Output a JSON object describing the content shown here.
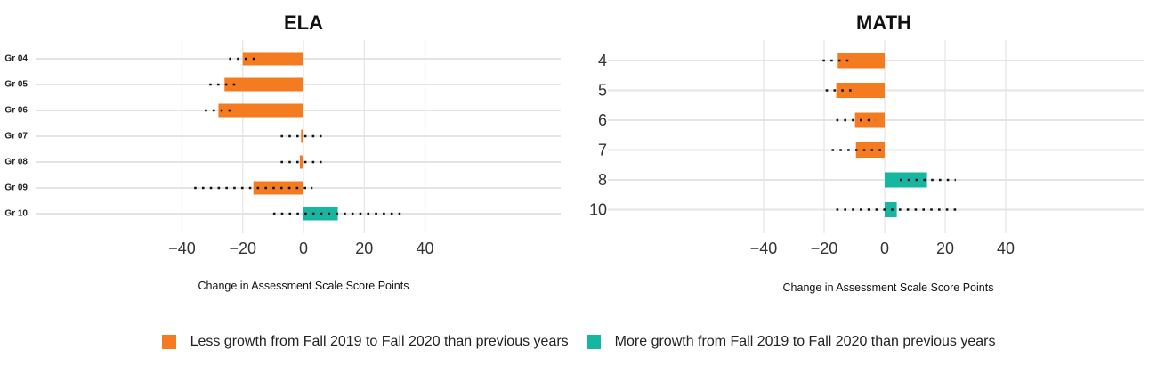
{
  "colors": {
    "less": "#f47b20",
    "more": "#17b6a1",
    "grid": "#e4e4e4",
    "text": "#222222"
  },
  "chart_data": [
    {
      "type": "bar",
      "title": "ELA",
      "orientation": "horizontal",
      "xlabel": "Change in Assessment Scale Score Points",
      "xlim": [
        -44,
        44
      ],
      "xticks": [
        -40,
        -20,
        0,
        20,
        40
      ],
      "xtick_labels": [
        "−40",
        "−20",
        "0",
        "20",
        "40"
      ],
      "grid": true,
      "categories": [
        "Gr 04",
        "Gr 05",
        "Gr 06",
        "Gr 07",
        "Gr 08",
        "Gr 09",
        "Gr 10"
      ],
      "values": [
        -20,
        -26,
        -28,
        -0.8,
        -1.2,
        -16.5,
        11.3
      ],
      "growth": [
        "less",
        "less",
        "less",
        "less",
        "less",
        "less",
        "more"
      ],
      "error_ranges": [
        [
          -24.5,
          -15.5
        ],
        [
          -31,
          -21
        ],
        [
          -32.5,
          -22.5
        ],
        [
          -7.5,
          6
        ],
        [
          -7.5,
          6
        ],
        [
          -36,
          3
        ],
        [
          -10,
          32
        ]
      ]
    },
    {
      "type": "bar",
      "title": "MATH",
      "orientation": "horizontal",
      "xlabel": "Change in Assessment Scale Score Points",
      "xlim": [
        -44,
        44
      ],
      "xticks": [
        -40,
        -20,
        0,
        20,
        40
      ],
      "xtick_labels": [
        "−40",
        "−20",
        "0",
        "20",
        "40"
      ],
      "grid": true,
      "categories": [
        "4",
        "5",
        "6",
        "7",
        "8",
        "10"
      ],
      "values": [
        -15.5,
        -16,
        -9.8,
        -9.5,
        14,
        4
      ],
      "growth": [
        "less",
        "less",
        "less",
        "less",
        "more",
        "more"
      ],
      "error_ranges": [
        [
          -20.5,
          -11
        ],
        [
          -19.5,
          -11
        ],
        [
          -16,
          -3
        ],
        [
          -17.5,
          -1
        ],
        [
          5,
          23.5
        ],
        [
          -16,
          24.5
        ]
      ]
    }
  ],
  "legend": [
    {
      "key": "less",
      "label": "Less growth from Fall 2019 to Fall 2020 than previous years"
    },
    {
      "key": "more",
      "label": "More growth from Fall 2019 to Fall 2020 than previous years"
    }
  ]
}
